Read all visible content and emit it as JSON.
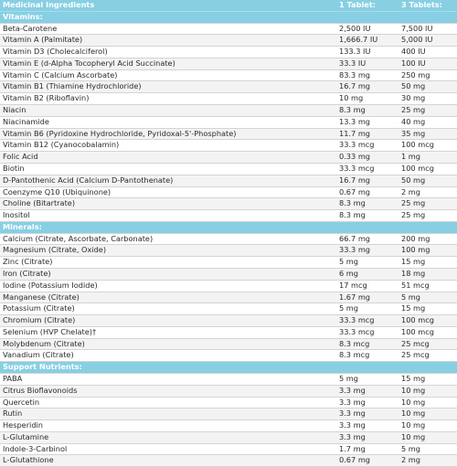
{
  "header": {
    "name": "Medicinal Ingredients",
    "one_tablet": "1 Tablet:",
    "three_tablets": "3 Tablets:"
  },
  "sections": [
    {
      "title": "Vitamins:",
      "rows": [
        {
          "name": "Beta-Carotene",
          "one": "2,500 IU",
          "three": "7,500 IU"
        },
        {
          "name": "Vitamin A (Palmitate)",
          "one": "1,666.7 IU",
          "three": "5,000 IU"
        },
        {
          "name": "Vitamin D3 (Cholecalciferol)",
          "one": "133.3 IU",
          "three": "400 IU"
        },
        {
          "name": "Vitamin E (d-Alpha Tocopheryl Acid Succinate)",
          "one": "33.3 IU",
          "three": "100 IU"
        },
        {
          "name": "Vitamin C (Calcium Ascorbate)",
          "one": "83.3 mg",
          "three": "250 mg"
        },
        {
          "name": "Vitamin B1 (Thiamine Hydrochloride)",
          "one": "16.7 mg",
          "three": "50 mg"
        },
        {
          "name": "Vitamin B2 (Riboflavin)",
          "one": "10 mg",
          "three": "30 mg"
        },
        {
          "name": "Niacin",
          "one": "8.3 mg",
          "three": "25 mg"
        },
        {
          "name": "Niacinamide",
          "one": "13.3 mg",
          "three": "40 mg"
        },
        {
          "name": "Vitamin B6 (Pyridoxine Hydrochloride, Pyridoxal-5'-Phosphate)",
          "one": "11.7 mg",
          "three": "35 mg"
        },
        {
          "name": "Vitamin B12 (Cyanocobalamin)",
          "one": "33.3 mcg",
          "three": "100 mcg"
        },
        {
          "name": "Folic Acid",
          "one": "0.33 mg",
          "three": "1 mg"
        },
        {
          "name": "Biotin",
          "one": "33.3 mcg",
          "three": "100 mcg"
        },
        {
          "name": "D-Pantothenic Acid (Calcium D-Pantothenate)",
          "one": "16.7 mg",
          "three": "50 mg"
        },
        {
          "name": "Coenzyme Q10 (Ubiquinone)",
          "one": "0.67 mg",
          "three": "2 mg"
        },
        {
          "name": "Choline (Bitartrate)",
          "one": "8.3 mg",
          "three": "25 mg"
        },
        {
          "name": "Inositol",
          "one": "8.3 mg",
          "three": "25 mg"
        }
      ]
    },
    {
      "title": "Minerals:",
      "rows": [
        {
          "name": "Calcium (Citrate, Ascorbate, Carbonate)",
          "one": "66.7 mg",
          "three": "200 mg"
        },
        {
          "name": "Magnesium (Citrate, Oxide)",
          "one": "33.3 mg",
          "three": "100 mg"
        },
        {
          "name": "Zinc (Citrate)",
          "one": "5 mg",
          "three": "15 mg"
        },
        {
          "name": "Iron (Citrate)",
          "one": "6 mg",
          "three": "18 mg"
        },
        {
          "name": "Iodine (Potassium Iodide)",
          "one": "17 mcg",
          "three": "51 mcg"
        },
        {
          "name": "Manganese (Citrate)",
          "one": "1.67 mg",
          "three": "5 mg"
        },
        {
          "name": "Potassium (Citrate)",
          "one": "5 mg",
          "three": "15 mg"
        },
        {
          "name": "Chromium (Citrate)",
          "one": "33.3 mcg",
          "three": "100 mcg"
        },
        {
          "name": "Selenium (HVP Chelate)†",
          "one": "33.3 mcg",
          "three": "100 mcg"
        },
        {
          "name": "Molybdenum (Citrate)",
          "one": "8.3 mcg",
          "three": "25 mcg"
        },
        {
          "name": "Vanadium (Citrate)",
          "one": "8.3 mcg",
          "three": "25 mcg"
        }
      ]
    },
    {
      "title": "Support Nutrients:",
      "rows": [
        {
          "name": "PABA",
          "one": "5 mg",
          "three": "15 mg"
        },
        {
          "name": "Citrus Bioflavonoids",
          "one": "3.3 mg",
          "three": "10 mg"
        },
        {
          "name": "Quercetin",
          "one": "3.3 mg",
          "three": "10 mg"
        },
        {
          "name": "Rutin",
          "one": "3.3 mg",
          "three": "10 mg"
        },
        {
          "name": "Hesperidin",
          "one": "3.3 mg",
          "three": "10 mg"
        },
        {
          "name": "L-Glutamine",
          "one": "3.3 mg",
          "three": "10 mg"
        },
        {
          "name": "Indole-3-Carbinol",
          "one": "1.7 mg",
          "three": "5 mg"
        },
        {
          "name": "L-Glutathione",
          "one": "0.67 mg",
          "three": "2 mg"
        }
      ]
    }
  ]
}
